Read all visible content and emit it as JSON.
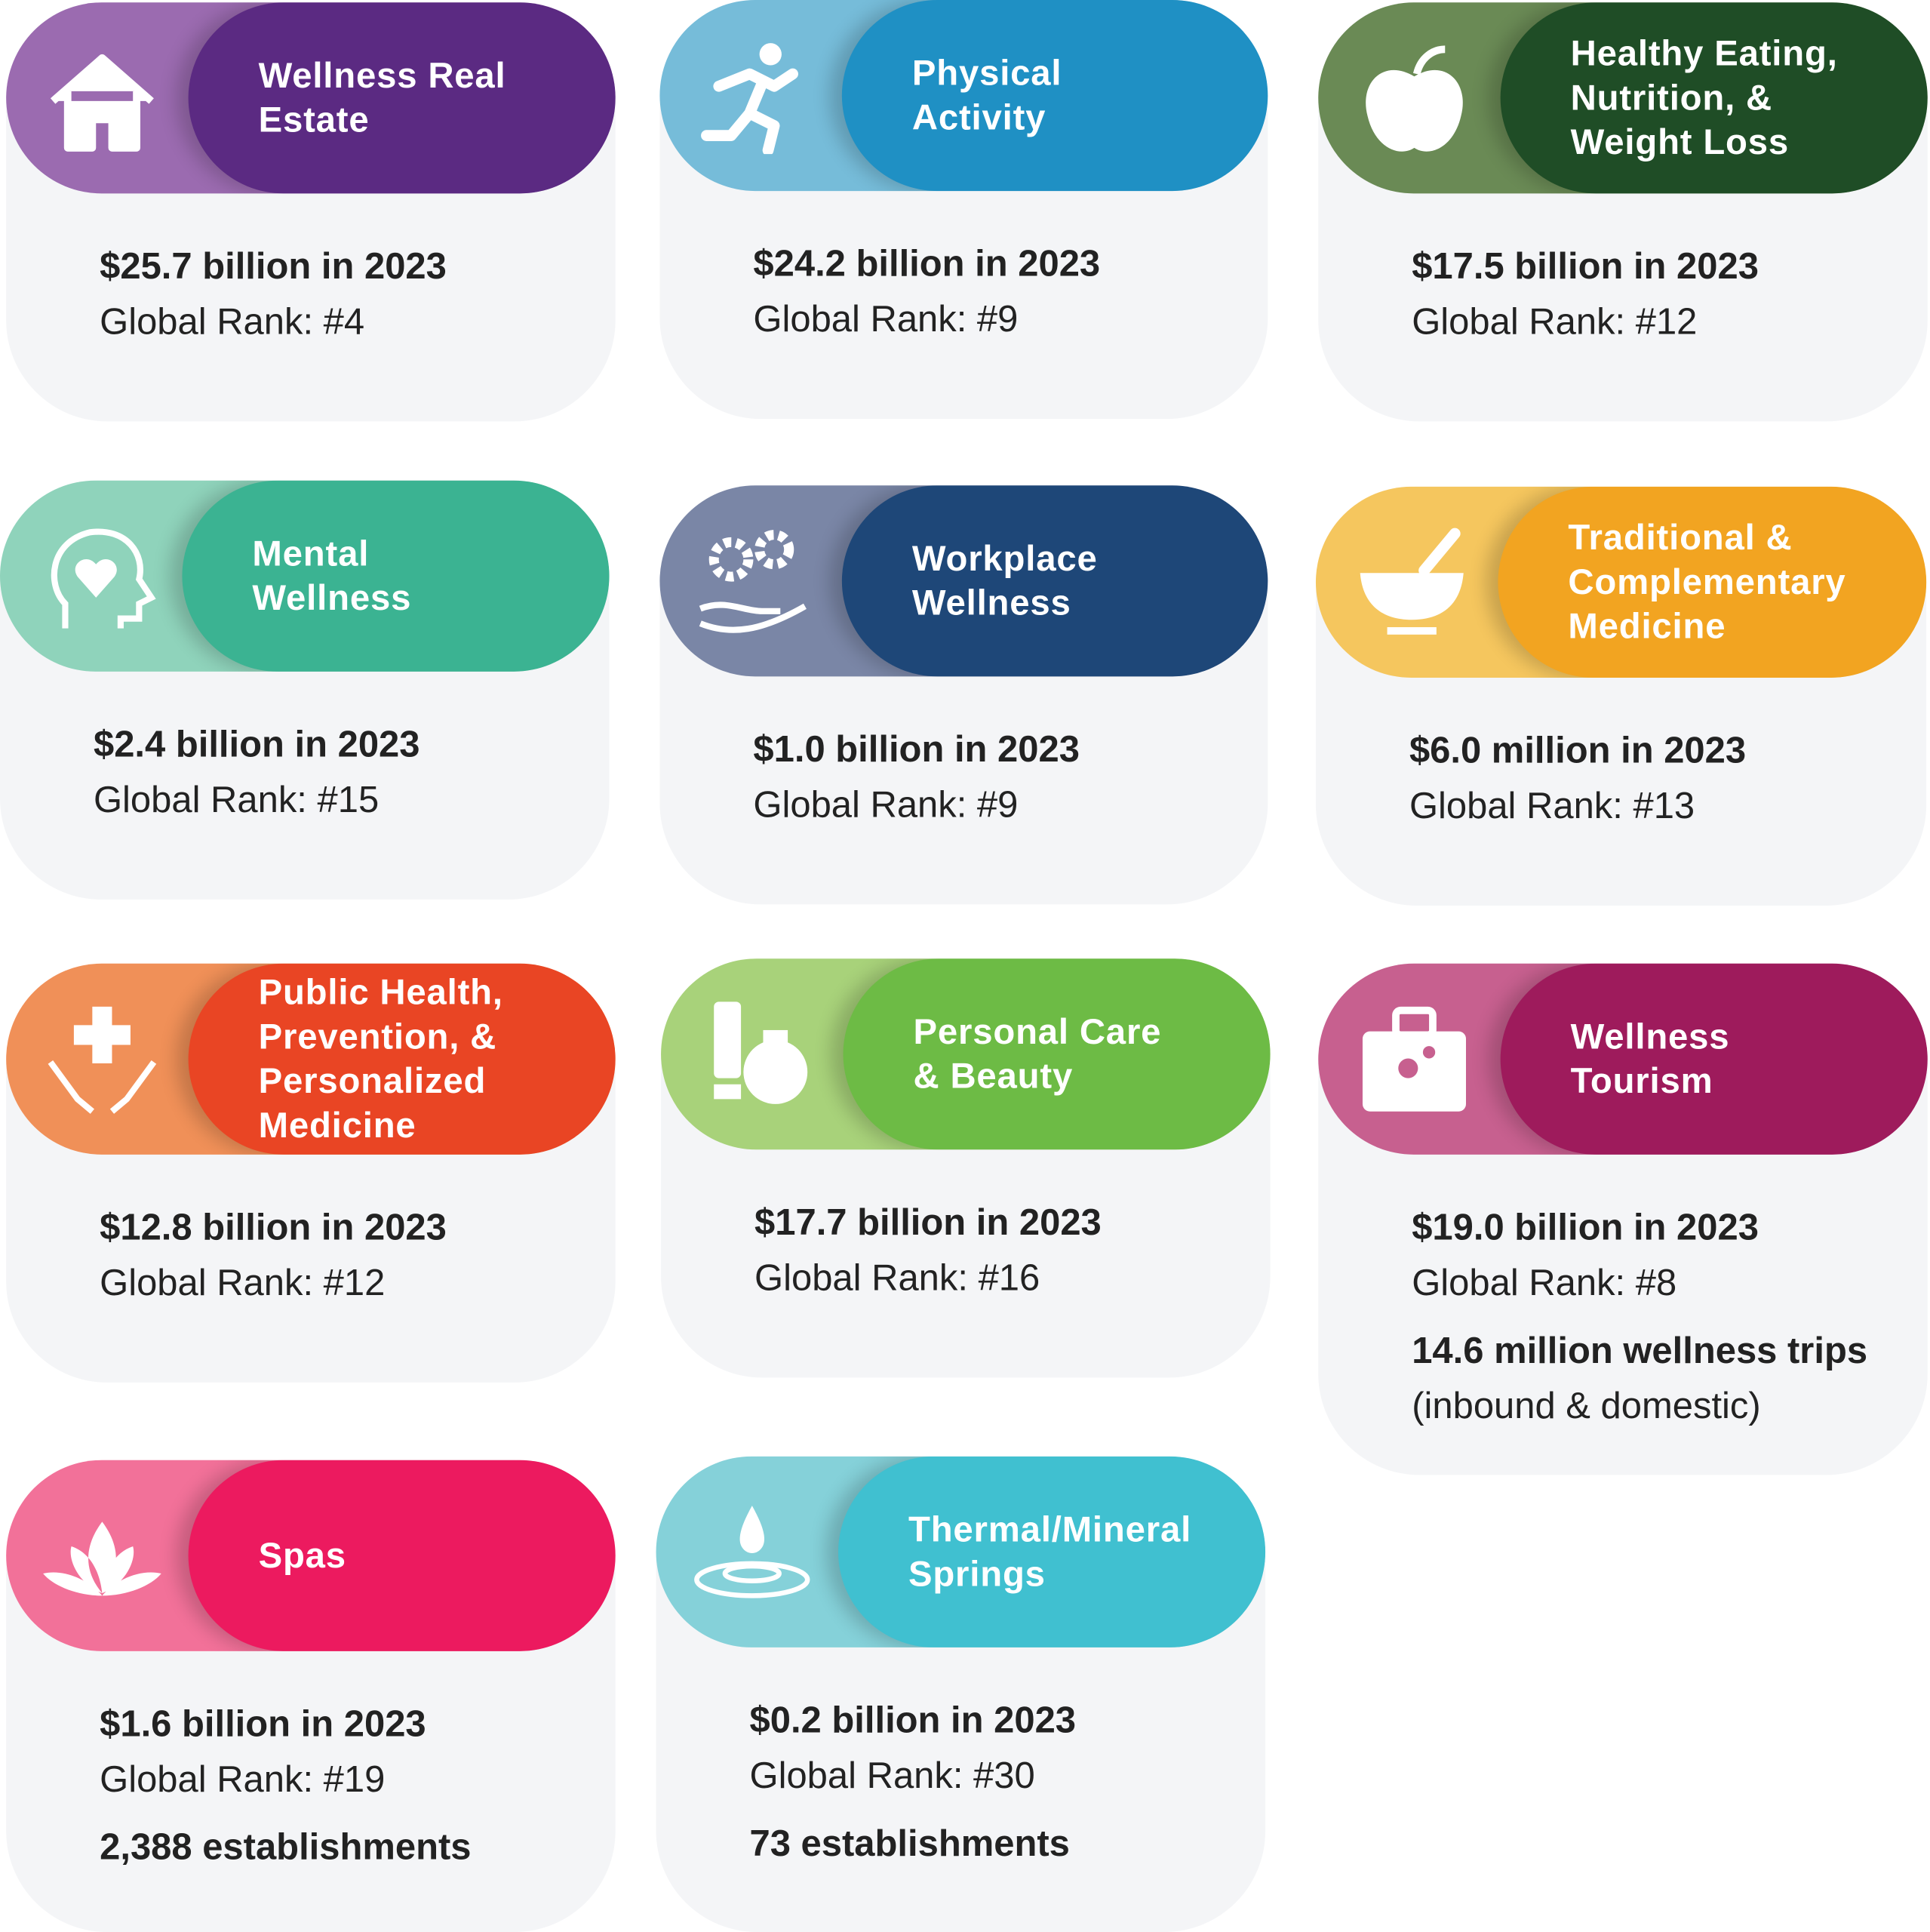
{
  "cards": [
    {
      "title_lines": [
        "Wellness Real",
        "Estate"
      ],
      "value": "$25.7 billion in 2023",
      "rank": "Global Rank: #4"
    },
    {
      "title_lines": [
        "Physical",
        "Activity"
      ],
      "value": "$24.2 billion in 2023",
      "rank": "Global Rank: #9"
    },
    {
      "title_lines": [
        "Healthy Eating,",
        "Nutrition, &",
        "Weight Loss"
      ],
      "value": "$17.5 billion in 2023",
      "rank": "Global Rank: #12"
    },
    {
      "title_lines": [
        "Mental",
        "Wellness"
      ],
      "value": "$2.4 billion in 2023",
      "rank": "Global Rank: #15"
    },
    {
      "title_lines": [
        "Workplace",
        "Wellness"
      ],
      "value": "$1.0 billion in 2023",
      "rank": "Global Rank: #9"
    },
    {
      "title_lines": [
        "Traditional &",
        "Complementary",
        "Medicine"
      ],
      "value": "$6.0 million in 2023",
      "rank": "Global Rank: #13"
    },
    {
      "title_lines": [
        "Public Health,",
        "Prevention, &",
        "Personalized",
        "Medicine"
      ],
      "value": "$12.8 billion in 2023",
      "rank": "Global Rank: #12"
    },
    {
      "title_lines": [
        "Personal Care",
        "& Beauty"
      ],
      "value": "$17.7 billion in 2023",
      "rank": "Global Rank: #16"
    },
    {
      "title_lines": [
        "Wellness",
        "Tourism"
      ],
      "value": "$19.0 billion in 2023",
      "rank": "Global Rank: #8",
      "extra": "14.6 million wellness trips",
      "extra_note": "(inbound & domestic)"
    },
    {
      "title_lines": [
        "Spas"
      ],
      "value": "$1.6 billion in 2023",
      "rank": "Global Rank: #19",
      "extra": "2,388 establishments"
    },
    {
      "title_lines": [
        "Thermal/Mineral",
        "Springs"
      ],
      "value": "$0.2 billion in 2023",
      "rank": "Global Rank: #30",
      "extra": "73 establishments"
    }
  ]
}
